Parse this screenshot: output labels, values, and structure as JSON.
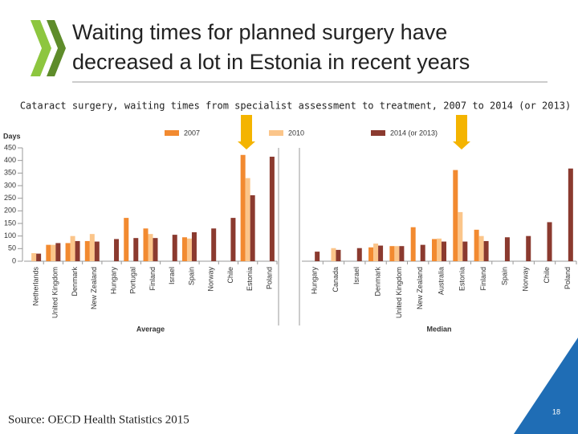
{
  "slide": {
    "title": [
      "Waiting times for planned surgery have",
      "decreased a lot in Estonia in recent years"
    ],
    "page": "18",
    "source": "Source: OECD Health Statistics 2015"
  },
  "chart_data": {
    "type": "bar",
    "subtitle": "Cataract surgery, waiting times from specialist assessment to treatment, 2007 to 2014 (or 2013)",
    "ylabel": "Days",
    "ylim": [
      0,
      450
    ],
    "yticks": [
      0,
      50,
      100,
      150,
      200,
      250,
      300,
      350,
      400,
      450
    ],
    "series": [
      {
        "name": "2007",
        "color": "#f28a30"
      },
      {
        "name": "2010",
        "color": "#fbc58a"
      },
      {
        "name": "2014 (or 2013)",
        "color": "#8b3a2f"
      }
    ],
    "panels": [
      {
        "xlabel": "Average",
        "categories": [
          "Netherlands",
          "United Kingdom",
          "Denmark",
          "New Zealand",
          "Hungary",
          "Portugal",
          "Finland",
          "Israel",
          "Spain",
          "Norway",
          "Chile",
          "Estonia",
          "Poland"
        ],
        "series": [
          {
            "values": [
              null,
              65,
              72,
              80,
              null,
              172,
              130,
              null,
              95,
              null,
              null,
              422,
              null
            ]
          },
          {
            "values": [
              32,
              65,
              100,
              108,
              null,
              null,
              108,
              null,
              90,
              null,
              null,
              330,
              null
            ]
          },
          {
            "values": [
              30,
              72,
              80,
              78,
              88,
              92,
              92,
              105,
              115,
              130,
              172,
              262,
              415
            ]
          }
        ]
      },
      {
        "xlabel": "Median",
        "categories": [
          "Hungary",
          "Canada",
          "Israel",
          "Denmark",
          "United Kingdom",
          "New Zealand",
          "Australia",
          "Estonia",
          "Finland",
          "Spain",
          "Norway",
          "Chile",
          "Poland"
        ],
        "series": [
          {
            "values": [
              null,
              null,
              null,
              55,
              60,
              135,
              88,
              362,
              125,
              null,
              null,
              null,
              null
            ]
          },
          {
            "values": [
              null,
              52,
              null,
              70,
              60,
              null,
              90,
              195,
              100,
              null,
              null,
              null,
              null
            ]
          },
          {
            "values": [
              38,
              45,
              52,
              62,
              60,
              65,
              78,
              78,
              80,
              95,
              100,
              155,
              368
            ]
          }
        ]
      }
    ]
  }
}
